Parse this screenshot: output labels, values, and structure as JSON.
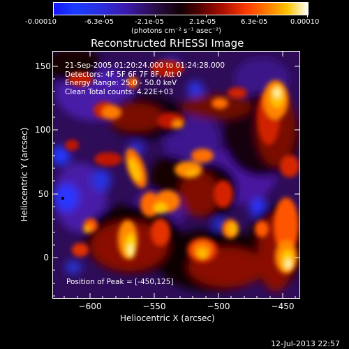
{
  "colorbar": {
    "ticks": [
      "-0.00010",
      "-6.3e-05",
      "-2.1e-05",
      "2.1e-05",
      "6.3e-05",
      "0.00010"
    ],
    "units_label": "(photons cm⁻² s⁻¹ asec⁻²)"
  },
  "plot": {
    "title": "Reconstructed RHESSI Image",
    "xlabel": "Heliocentric X (arcsec)",
    "ylabel": "Heliocentric Y (arcsec)",
    "x_ticks": [
      "−600",
      "−550",
      "−500",
      "−450"
    ],
    "y_ticks": [
      "150",
      "100",
      "50",
      "0"
    ],
    "x_range": [
      -632,
      -438
    ],
    "y_range": [
      -28,
      162
    ],
    "info_lines": [
      "21-Sep-2005 01:20:24.000 to 01:24:28.000",
      "Detectors: 4F 5F 6F 7F 8F, Att 0",
      "Energy Range: 25.0 - 50.0 keV",
      "Clean    Total counts: 4.22E+03"
    ],
    "peak_text": "Position of Peak = [-450,125]",
    "colormap": "red-temperature (blue negative, black/purple mid, yellow-white positive)"
  },
  "footer": {
    "timestamp": "12-Jul-2013 22:57"
  }
}
